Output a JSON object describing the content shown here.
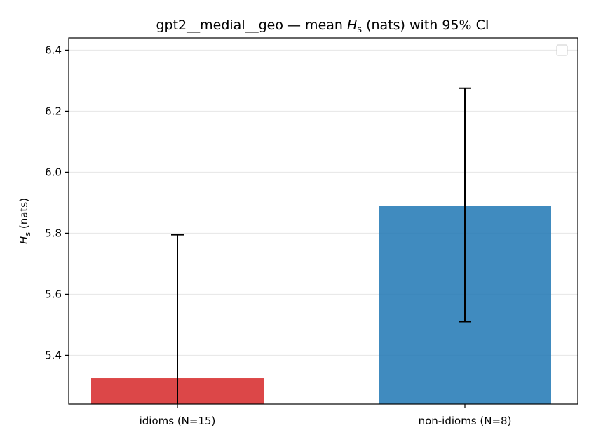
{
  "chart_data": {
    "type": "bar",
    "title_parts": {
      "prefix": "gpt2__medial__geo — mean ",
      "symbol": "H",
      "subscript": "s",
      "suffix": " (nats) with 95% CI"
    },
    "ylabel_parts": {
      "symbol": "H",
      "subscript": "s",
      "suffix": " (nats)"
    },
    "categories": [
      "idioms (N=15)",
      "non-idioms (N=8)"
    ],
    "values": [
      5.325,
      5.89
    ],
    "ci_low": [
      5.2,
      5.51
    ],
    "ci_high": [
      5.795,
      6.275
    ],
    "colors": [
      "#d62728",
      "#1f77b4"
    ],
    "ylim": [
      5.24,
      6.44
    ],
    "yticks": [
      "5.4",
      "5.6",
      "5.8",
      "6.0",
      "6.2",
      "6.4"
    ],
    "grid": true,
    "legend": "top-right"
  }
}
